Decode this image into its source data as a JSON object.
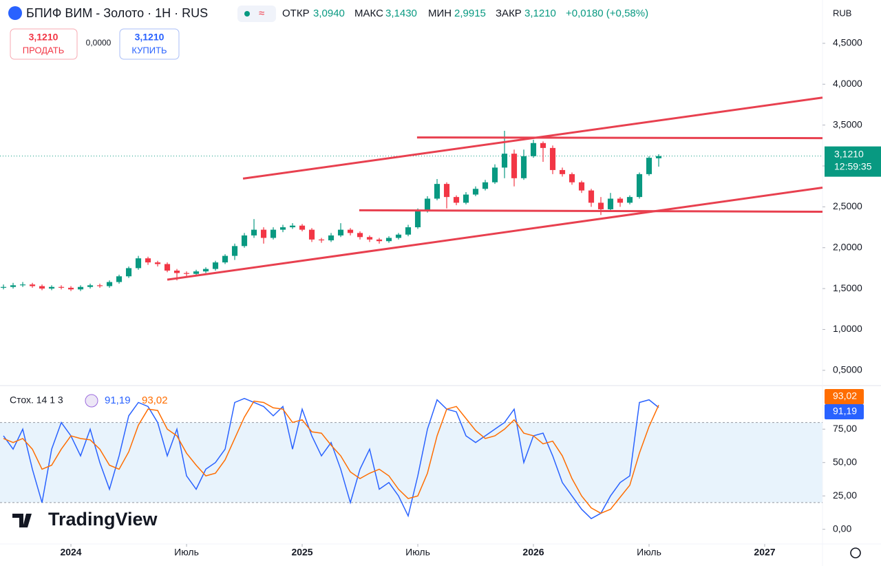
{
  "chart_data": {
    "type": "candlestick",
    "title": "БПИФ ВИМ - Золото · 1Н · RUS",
    "legend": {
      "open_label": "ОТКР",
      "open": "3,0940",
      "high_label": "МАКС",
      "high": "3,1430",
      "low_label": "МИН",
      "low": "2,9915",
      "close_label": "ЗАКР",
      "close": "3,1210",
      "change": "+0,0180 (+0,58%)"
    },
    "trade": {
      "sell_price": "3,1210",
      "sell_label": "ПРОДАТЬ",
      "spread": "0,0000",
      "buy_price": "3,1210",
      "buy_label": "КУПИТЬ"
    },
    "currency": "RUB",
    "last_price_label": "3,1210",
    "countdown": "12:59:35",
    "brand": "TradingView",
    "up_color": "#089981",
    "down_color": "#f23645",
    "x": [
      -3.5,
      -3,
      -2.5,
      -2,
      -1.5,
      -1,
      -0.5,
      0,
      0.5,
      1,
      1.5,
      2,
      2.5,
      3,
      3.5,
      4,
      4.5,
      5,
      5.5,
      6,
      6.5,
      7,
      7.5,
      8,
      8.5,
      9,
      9.5,
      10,
      10.5,
      11,
      11.5,
      12,
      12.5,
      13,
      13.5,
      14,
      14.5,
      15,
      15.5,
      16,
      16.5,
      17,
      17.5,
      18,
      18.5,
      19,
      19.5,
      20,
      20.5,
      21,
      21.5,
      22,
      22.5,
      23,
      23.5,
      24,
      24.5,
      25,
      25.5,
      26,
      26.5,
      27,
      27.5,
      28,
      28.5,
      29,
      29.5,
      30,
      30.5
    ],
    "open": [
      1.51,
      1.52,
      1.54,
      1.55,
      1.53,
      1.5,
      1.52,
      1.51,
      1.49,
      1.52,
      1.54,
      1.53,
      1.58,
      1.65,
      1.75,
      1.87,
      1.82,
      1.8,
      1.72,
      1.69,
      1.68,
      1.71,
      1.74,
      1.82,
      1.9,
      2.02,
      2.15,
      2.22,
      2.12,
      2.22,
      2.25,
      2.27,
      2.22,
      2.1,
      2.09,
      2.15,
      2.22,
      2.18,
      2.13,
      2.1,
      2.08,
      2.12,
      2.16,
      2.25,
      2.45,
      2.6,
      2.78,
      2.62,
      2.55,
      2.65,
      2.72,
      2.8,
      2.98,
      3.15,
      2.85,
      3.12,
      3.28,
      3.22,
      2.95,
      2.9,
      2.8,
      2.7,
      2.55,
      2.47,
      2.6,
      2.55,
      2.62,
      2.9,
      3.094
    ],
    "high": [
      1.55,
      1.57,
      1.58,
      1.57,
      1.55,
      1.54,
      1.54,
      1.53,
      1.54,
      1.56,
      1.56,
      1.6,
      1.67,
      1.77,
      1.9,
      1.89,
      1.84,
      1.82,
      1.74,
      1.71,
      1.73,
      1.76,
      1.84,
      1.92,
      2.05,
      2.18,
      2.35,
      2.25,
      2.25,
      2.28,
      2.3,
      2.29,
      2.24,
      2.12,
      2.18,
      2.3,
      2.24,
      2.2,
      2.15,
      2.12,
      2.14,
      2.18,
      2.28,
      2.48,
      2.63,
      2.84,
      2.8,
      2.64,
      2.68,
      2.75,
      2.83,
      3.02,
      3.43,
      3.2,
      3.2,
      3.32,
      3.3,
      3.25,
      2.98,
      2.92,
      2.82,
      2.72,
      2.62,
      2.67,
      2.62,
      2.64,
      2.92,
      3.12,
      3.143
    ],
    "low": [
      1.49,
      1.5,
      1.52,
      1.51,
      1.48,
      1.48,
      1.49,
      1.47,
      1.47,
      1.5,
      1.51,
      1.51,
      1.56,
      1.63,
      1.73,
      1.79,
      1.77,
      1.7,
      1.6,
      1.65,
      1.66,
      1.69,
      1.72,
      1.8,
      1.85,
      2.0,
      2.12,
      2.05,
      2.1,
      2.19,
      2.23,
      2.2,
      2.07,
      2.06,
      2.07,
      2.13,
      2.15,
      2.1,
      2.07,
      2.05,
      2.06,
      2.1,
      2.14,
      2.23,
      2.43,
      2.58,
      2.48,
      2.52,
      2.53,
      2.63,
      2.7,
      2.78,
      2.85,
      2.75,
      2.83,
      3.1,
      3.05,
      2.9,
      2.87,
      2.77,
      2.67,
      2.5,
      2.4,
      2.45,
      2.5,
      2.53,
      2.6,
      2.88,
      2.9915
    ],
    "close": [
      1.52,
      1.54,
      1.55,
      1.53,
      1.5,
      1.52,
      1.51,
      1.49,
      1.52,
      1.54,
      1.53,
      1.58,
      1.65,
      1.75,
      1.87,
      1.82,
      1.8,
      1.72,
      1.69,
      1.68,
      1.71,
      1.74,
      1.82,
      1.9,
      2.02,
      2.15,
      2.22,
      2.12,
      2.22,
      2.25,
      2.27,
      2.22,
      2.1,
      2.09,
      2.15,
      2.22,
      2.18,
      2.13,
      2.1,
      2.08,
      2.12,
      2.16,
      2.25,
      2.45,
      2.6,
      2.78,
      2.62,
      2.55,
      2.65,
      2.72,
      2.8,
      2.98,
      3.15,
      2.85,
      3.12,
      3.28,
      3.22,
      2.95,
      2.9,
      2.8,
      2.7,
      2.55,
      2.47,
      2.6,
      2.55,
      2.62,
      2.9,
      3.1,
      3.121
    ],
    "xlim": [
      -3.68,
      39
    ],
    "xticks": [
      {
        "value": 0,
        "label": "2024"
      },
      {
        "value": 6,
        "label": "Июль"
      },
      {
        "value": 12,
        "label": "2025"
      },
      {
        "value": 18,
        "label": "Июль"
      },
      {
        "value": 24,
        "label": "2026"
      },
      {
        "value": 30,
        "label": "Июль"
      },
      {
        "value": 36,
        "label": "2027"
      }
    ],
    "ylim": [
      0.33,
      5.03
    ],
    "yticks": [
      {
        "value": 0.5,
        "label": "0,5000"
      },
      {
        "value": 1,
        "label": "1,0000"
      },
      {
        "value": 1.5,
        "label": "1,5000"
      },
      {
        "value": 2,
        "label": "2,0000"
      },
      {
        "value": 2.5,
        "label": "2,5000"
      },
      {
        "value": 3,
        "label": "3,0000"
      },
      {
        "value": 3.5,
        "label": "3,5000"
      },
      {
        "value": 4,
        "label": "4,0000"
      },
      {
        "value": 4.5,
        "label": "4,5000"
      }
    ],
    "drawings": [
      {
        "color": "#e8404f",
        "x": [
          8.93,
          39
        ],
        "y": [
          2.845,
          3.836
        ]
      },
      {
        "color": "#e8404f",
        "x": [
          17.96,
          39
        ],
        "y": [
          3.349,
          3.34
        ]
      },
      {
        "color": "#e8404f",
        "x": [
          14.96,
          39
        ],
        "y": [
          2.458,
          2.44
        ]
      },
      {
        "color": "#e8404f",
        "x": [
          5.0,
          39
        ],
        "y": [
          1.609,
          2.735
        ]
      }
    ],
    "stochastic": {
      "title": "Стох. 14 1 3",
      "ylim": [
        -11,
        106.6
      ],
      "yticks": [
        {
          "value": 0,
          "label": "0,00"
        },
        {
          "value": 25,
          "label": "25,00"
        },
        {
          "value": 50,
          "label": "50,00"
        },
        {
          "value": 75,
          "label": "75,00"
        }
      ],
      "bands": [
        20,
        80
      ],
      "series": [
        {
          "color": "#2962ff",
          "last_label": "91,19",
          "values": [
            70,
            60,
            75,
            45,
            20,
            60,
            80,
            70,
            55,
            75,
            50,
            30,
            55,
            85,
            95,
            92,
            80,
            55,
            75,
            40,
            30,
            45,
            50,
            60,
            95,
            98,
            95,
            92,
            85,
            92,
            60,
            90,
            70,
            55,
            65,
            45,
            20,
            45,
            60,
            30,
            35,
            25,
            10,
            40,
            75,
            97,
            90,
            88,
            70,
            65,
            70,
            75,
            80,
            90,
            50,
            70,
            72,
            55,
            35,
            25,
            15,
            8,
            12,
            25,
            35,
            40,
            95,
            97,
            91.19
          ]
        },
        {
          "color": "#ff6d00",
          "last_label": "93,02",
          "values": [
            68,
            65,
            68,
            60,
            45,
            48,
            60,
            70,
            68,
            67,
            60,
            48,
            45,
            58,
            78,
            90,
            89,
            75,
            70,
            57,
            48,
            40,
            42,
            52,
            68,
            84,
            96,
            95,
            91,
            90,
            80,
            82,
            73,
            72,
            63,
            55,
            43,
            38,
            42,
            45,
            40,
            30,
            23,
            25,
            42,
            70,
            90,
            92,
            83,
            74,
            68,
            70,
            75,
            82,
            72,
            70,
            64,
            66,
            55,
            38,
            25,
            16,
            12,
            15,
            24,
            33,
            57,
            77,
            93.02
          ]
        }
      ]
    }
  }
}
